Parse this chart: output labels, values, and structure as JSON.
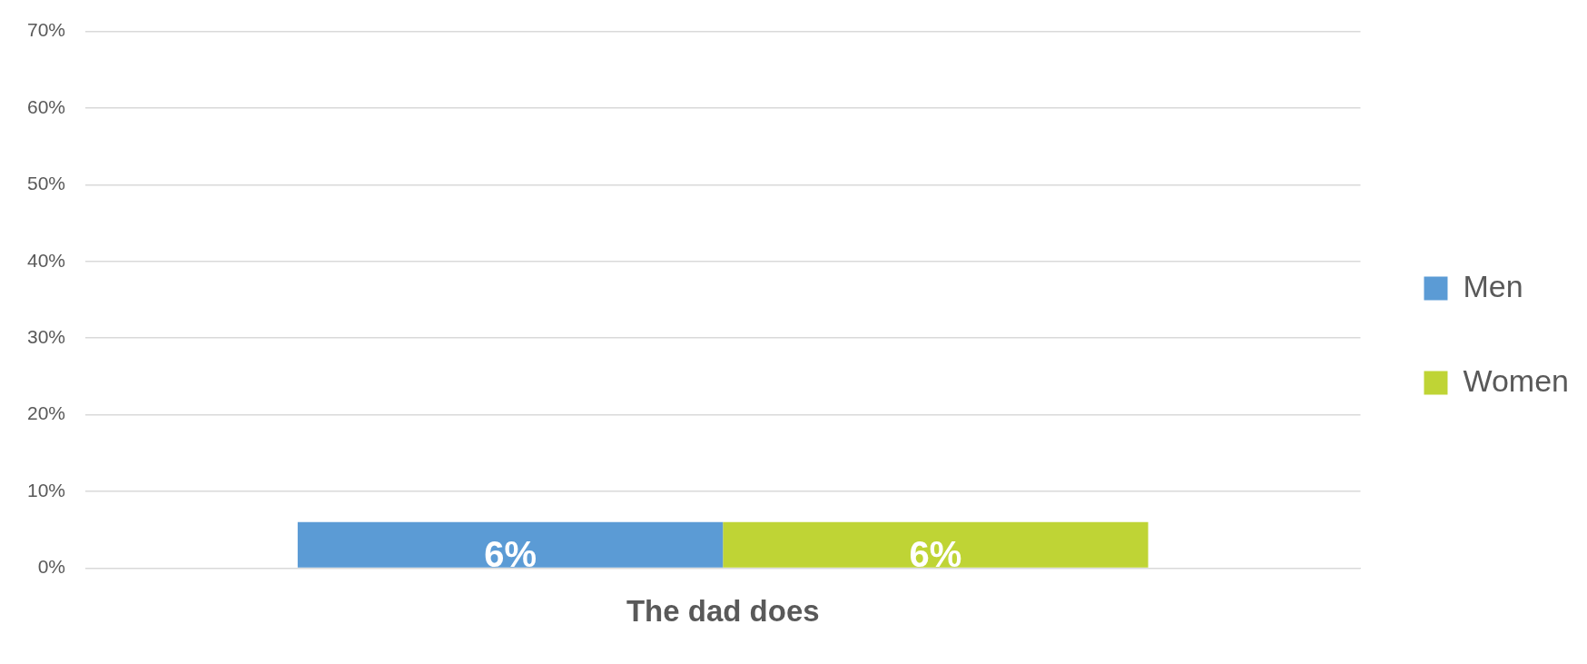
{
  "chart_data": {
    "type": "bar",
    "categories": [
      "The dad does"
    ],
    "series": [
      {
        "name": "Men",
        "color": "#5b9bd5",
        "values": [
          6
        ]
      },
      {
        "name": "Women",
        "color": "#bfd435",
        "values": [
          6
        ]
      }
    ],
    "ylim": [
      0,
      70
    ],
    "yticks": [
      {
        "value": 0,
        "label": "0%"
      },
      {
        "value": 10,
        "label": "10%"
      },
      {
        "value": 20,
        "label": "20%"
      },
      {
        "value": 30,
        "label": "30%"
      },
      {
        "value": 40,
        "label": "40%"
      },
      {
        "value": 50,
        "label": "50%"
      },
      {
        "value": 60,
        "label": "60%"
      },
      {
        "value": 70,
        "label": "70%"
      }
    ],
    "value_labels": [
      [
        "6%"
      ],
      [
        "6%"
      ]
    ],
    "grid": "y",
    "legend": "right"
  }
}
